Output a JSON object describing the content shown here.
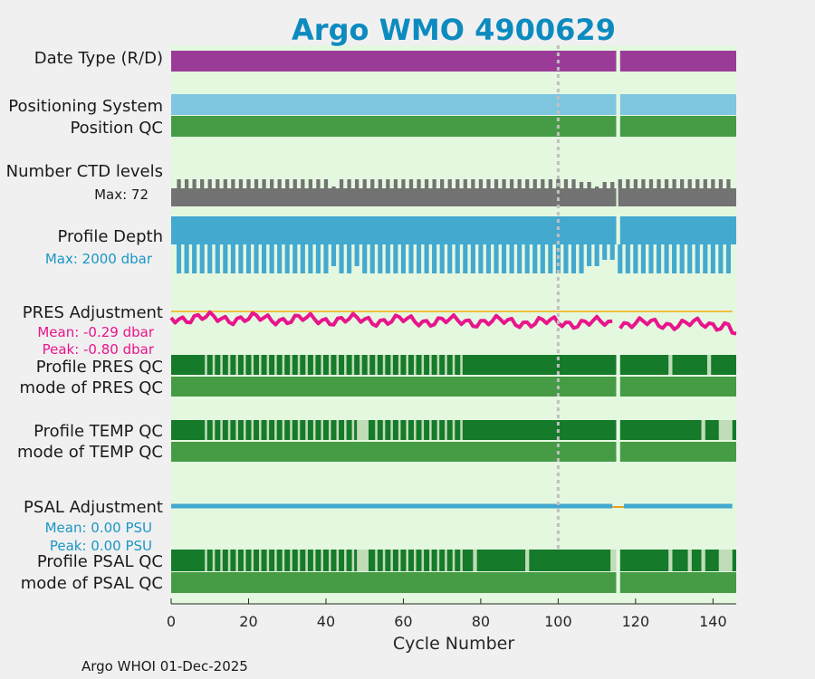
{
  "colors": {
    "background": "#f0f0f0",
    "panel": "#e4f8e0",
    "title": "#0d8bbf",
    "date_type": "#9a3c97",
    "positioning": "#7fc6e0",
    "qc_good_mode": "#459c45",
    "qc_dark": "#157a2a",
    "qc_light": "#c0dcb8",
    "ctd": "#737373",
    "depth": "#43a9cf",
    "pres_line": "#e8158c",
    "pres_zero": "#f0c040",
    "psal_line": "#43a9cf",
    "psal_orange": "#e6a020",
    "vline": "#c0c0c0",
    "pres_text": "#e8158c",
    "psal_text": "#1a96c6"
  },
  "labels": {
    "date_type": "Date Type (R/D)",
    "positioning": "Positioning System",
    "position_qc": "Position QC",
    "ctd": "Number CTD levels",
    "ctd_max": "Max: 72",
    "depth": "Profile Depth",
    "depth_max": "Max: 2000 dbar",
    "pres_adj": "PRES Adjustment",
    "pres_mean": "Mean: -0.29 dbar",
    "pres_peak": "Peak: -0.80 dbar",
    "pres_qc": "Profile PRES QC",
    "pres_mode": "mode of PRES QC",
    "temp_qc": "Profile TEMP QC",
    "temp_mode": "mode of TEMP QC",
    "psal_adj": "PSAL Adjustment",
    "psal_mean": "Mean: 0.00 PSU",
    "psal_peak": "Peak: 0.00 PSU",
    "psal_qc": "Profile PSAL QC",
    "psal_mode": "mode of PSAL QC"
  },
  "footer": "Argo WHOI 01-Dec-2025",
  "chart_data": {
    "type": "timeline",
    "title": "Argo WMO 4900629",
    "xlabel": "Cycle Number",
    "xlim": [
      0,
      146
    ],
    "xticks": [
      0,
      20,
      40,
      60,
      80,
      100,
      120,
      140
    ],
    "gap_cycles": [
      115,
      116
    ],
    "marker_cycle": 100,
    "ctd_max_levels": 72,
    "max_depth_dbar": 2000,
    "pres_adjustment": {
      "mean_dbar": -0.29,
      "peak_dbar": -0.8
    },
    "psal_adjustment": {
      "mean_psu": 0.0,
      "peak_psu": 0.0
    },
    "tracks": [
      "Date Type (R/D)",
      "Positioning System",
      "Position QC",
      "Number CTD levels",
      "Profile Depth",
      "PRES Adjustment",
      "Profile PRES QC",
      "mode of PRES QC",
      "Profile TEMP QC",
      "mode of TEMP QC",
      "PSAL Adjustment",
      "Profile PSAL QC",
      "mode of PSAL QC"
    ]
  }
}
